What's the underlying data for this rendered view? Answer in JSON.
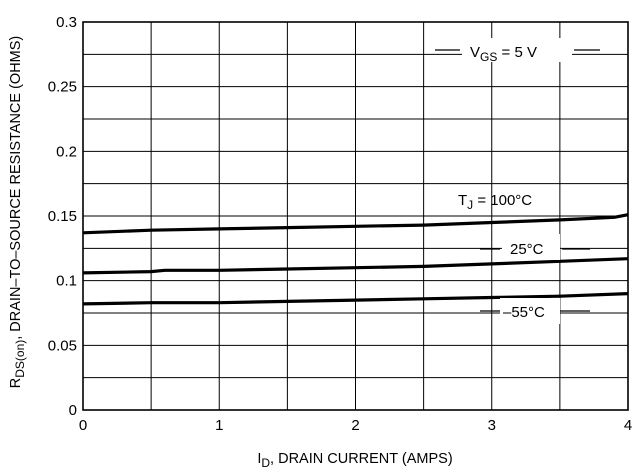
{
  "chart_data": {
    "type": "line",
    "xlabel": {
      "main": "I",
      "sub": "D",
      "rest": ", DRAIN CURRENT (AMPS)"
    },
    "ylabel": {
      "main": "R",
      "sub": "DS(on)",
      "rest": ", DRAIN–TO–SOURCE RESISTANCE (OHMS)"
    },
    "xlim": [
      0,
      4
    ],
    "ylim": [
      0,
      0.3
    ],
    "x_ticks": [
      0,
      1,
      2,
      3,
      4
    ],
    "x_tick_labels": [
      "0",
      "1",
      "2",
      "3",
      "4"
    ],
    "y_ticks": [
      0,
      0.05,
      0.1,
      0.15,
      0.2,
      0.25,
      0.3
    ],
    "y_tick_labels": [
      "0",
      "0.05",
      "0.1",
      "0.15",
      "0.2",
      "0.25",
      "0.3"
    ],
    "grid": {
      "x_step": 0.5,
      "y_step": 0.025
    },
    "series": [
      {
        "label": "T_J = 100°C",
        "x": [
          0,
          0.5,
          1,
          1.5,
          2,
          2.5,
          3,
          3.5,
          3.9,
          4
        ],
        "y": [
          0.137,
          0.139,
          0.14,
          0.141,
          0.142,
          0.143,
          0.145,
          0.147,
          0.149,
          0.151
        ]
      },
      {
        "label": "25°C",
        "x": [
          0,
          0.5,
          0.6,
          1,
          1.5,
          2,
          2.5,
          3,
          3.5,
          4
        ],
        "y": [
          0.106,
          0.107,
          0.108,
          0.108,
          0.109,
          0.11,
          0.111,
          0.113,
          0.115,
          0.117
        ]
      },
      {
        "label": "–55°C",
        "x": [
          0,
          0.5,
          1,
          1.5,
          2,
          2.5,
          3,
          3.5,
          4
        ],
        "y": [
          0.082,
          0.083,
          0.083,
          0.084,
          0.085,
          0.086,
          0.087,
          0.088,
          0.09
        ]
      }
    ],
    "annotations": {
      "vgs": {
        "main": "V",
        "sub": "GS",
        "rest": " = 5 V"
      },
      "tj": {
        "main": "T",
        "sub": "J",
        "rest": " = 100°C"
      },
      "t25": "25°C",
      "tm55": "–55°C"
    }
  }
}
